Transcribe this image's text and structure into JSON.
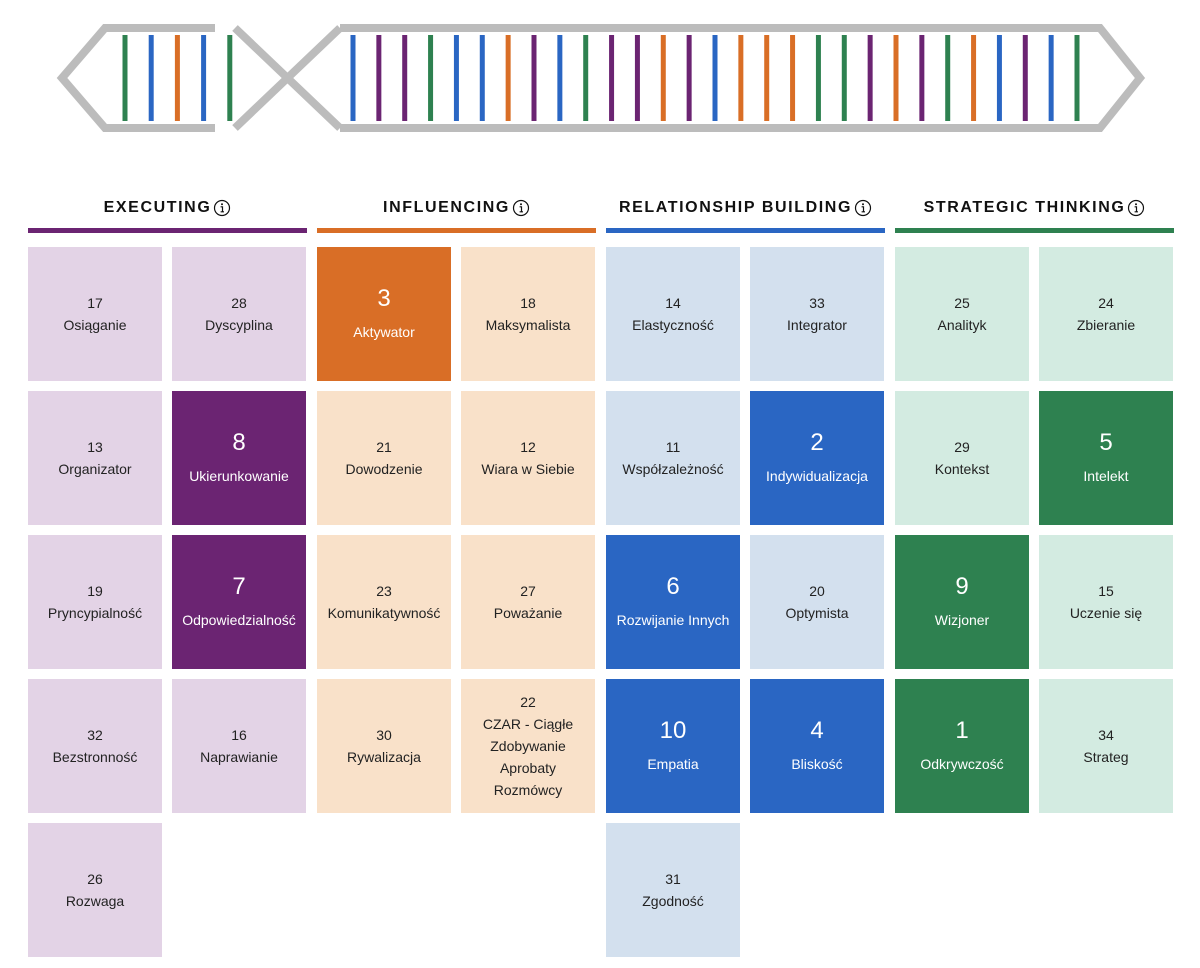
{
  "domains": [
    {
      "name": "EXECUTING",
      "color": "#6b2472",
      "light_color": "#e3d3e6",
      "tiles": [
        {
          "rank": 17,
          "name": "Osiąganie"
        },
        {
          "rank": 28,
          "name": "Dyscyplina"
        },
        {
          "rank": 13,
          "name": "Organizator"
        },
        {
          "rank": 8,
          "name": "Ukierunkowanie"
        },
        {
          "rank": 19,
          "name": "Pryncypialność"
        },
        {
          "rank": 7,
          "name": "Odpowiedzialność"
        },
        {
          "rank": 32,
          "name": "Bezstronność"
        },
        {
          "rank": 16,
          "name": "Naprawianie"
        },
        {
          "rank": 26,
          "name": "Rozwaga"
        }
      ]
    },
    {
      "name": "INFLUENCING",
      "color": "#d96e26",
      "light_color": "#f9e1c9",
      "tiles": [
        {
          "rank": 3,
          "name": "Aktywator"
        },
        {
          "rank": 18,
          "name": "Maksymalista"
        },
        {
          "rank": 21,
          "name": "Dowodzenie"
        },
        {
          "rank": 12,
          "name": "Wiara w Siebie"
        },
        {
          "rank": 23,
          "name": "Komunikatywność"
        },
        {
          "rank": 27,
          "name": "Poważanie"
        },
        {
          "rank": 30,
          "name": "Rywalizacja"
        },
        {
          "rank": 22,
          "name": "CZAR - Ciągłe Zdobywanie Aprobaty Rozmówcy"
        }
      ]
    },
    {
      "name": "RELATIONSHIP BUILDING",
      "color": "#2a66c3",
      "light_color": "#d3e0ee",
      "tiles": [
        {
          "rank": 14,
          "name": "Elastyczność"
        },
        {
          "rank": 33,
          "name": "Integrator"
        },
        {
          "rank": 11,
          "name": "Współzależność"
        },
        {
          "rank": 2,
          "name": "Indywidualizacja"
        },
        {
          "rank": 6,
          "name": "Rozwijanie Innych"
        },
        {
          "rank": 20,
          "name": "Optymista"
        },
        {
          "rank": 10,
          "name": "Empatia"
        },
        {
          "rank": 4,
          "name": "Bliskość"
        },
        {
          "rank": 31,
          "name": "Zgodność"
        }
      ]
    },
    {
      "name": "STRATEGIC THINKING",
      "color": "#2e8150",
      "light_color": "#d3ebe1",
      "tiles": [
        {
          "rank": 25,
          "name": "Analityk"
        },
        {
          "rank": 24,
          "name": "Zbieranie"
        },
        {
          "rank": 29,
          "name": "Kontekst"
        },
        {
          "rank": 5,
          "name": "Intelekt"
        },
        {
          "rank": 9,
          "name": "Wizjoner"
        },
        {
          "rank": 15,
          "name": "Uczenie się"
        },
        {
          "rank": 1,
          "name": "Odkrywczość"
        },
        {
          "rank": 34,
          "name": "Strateg"
        }
      ]
    }
  ]
}
